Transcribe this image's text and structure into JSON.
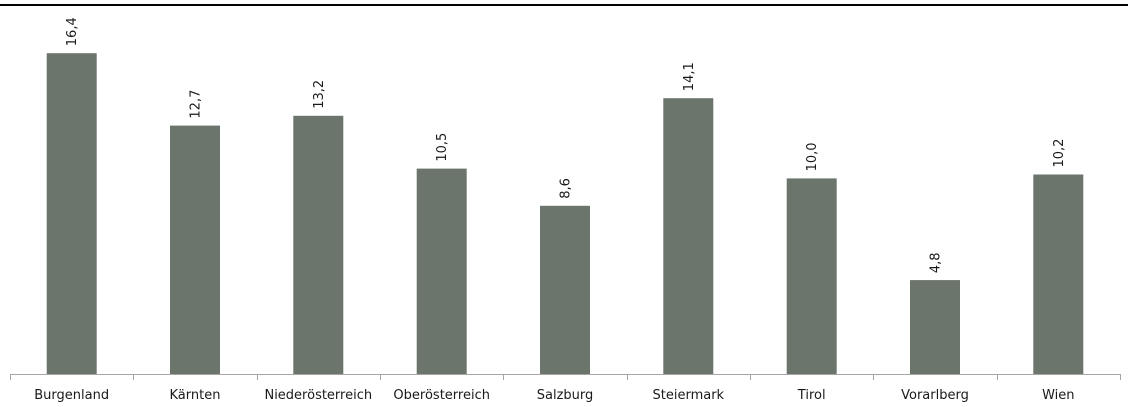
{
  "chart_data": {
    "type": "bar",
    "title": "",
    "xlabel": "",
    "ylabel": "",
    "categories": [
      "Burgenland",
      "Kärnten",
      "Niederösterreich",
      "Oberösterreich",
      "Salzburg",
      "Steiermark",
      "Tirol",
      "Vorarlberg",
      "Wien"
    ],
    "values": [
      16.4,
      12.7,
      13.2,
      10.5,
      8.6,
      14.1,
      10.0,
      4.8,
      10.2
    ],
    "value_labels": [
      "16,4",
      "12,7",
      "13,2",
      "10,5",
      "8,6",
      "14,1",
      "10,0",
      "4,8",
      "10,2"
    ],
    "ylim": [
      0,
      18.15
    ],
    "grid": false,
    "legend": "none",
    "bar_color": "#6b756c",
    "axis_color": "#a6a6a6"
  }
}
